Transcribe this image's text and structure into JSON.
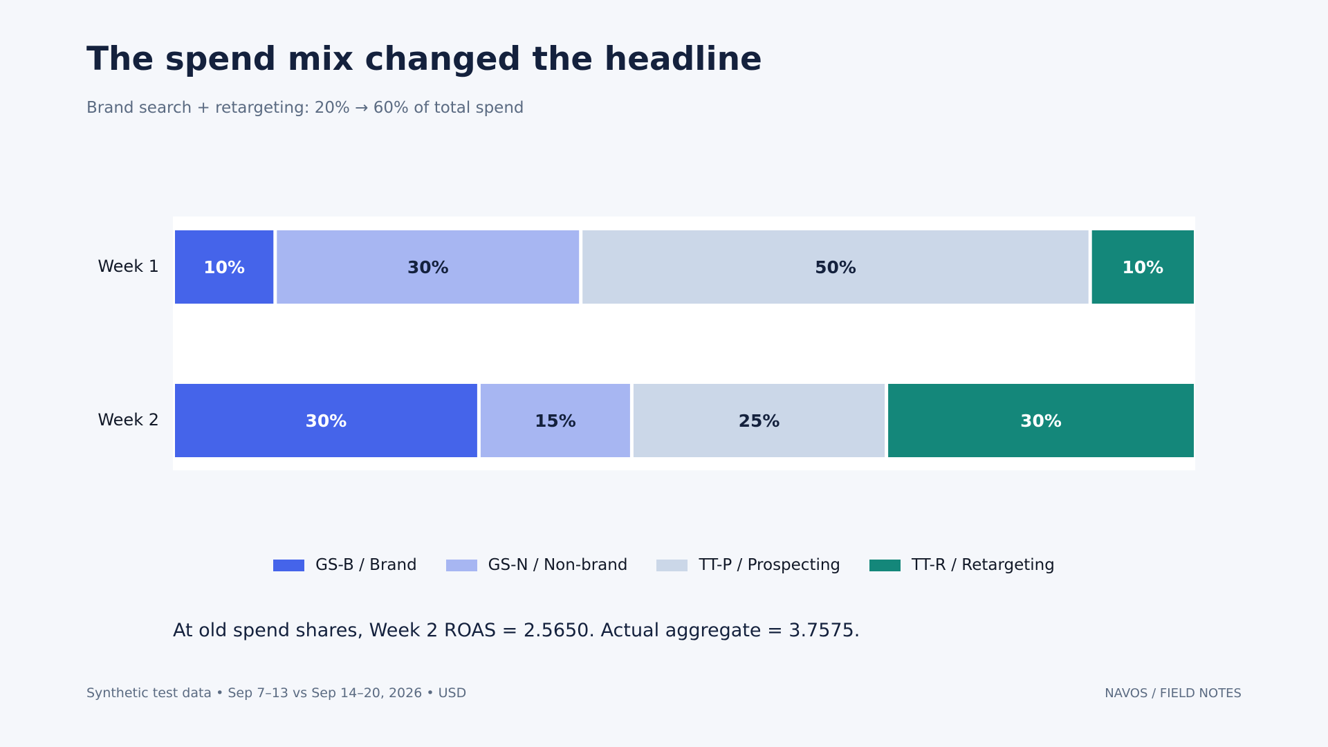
{
  "title": "The spend mix changed the headline",
  "subtitle": "Brand search + retargeting: 20% → 60% of total spend",
  "chart_data": {
    "type": "bar",
    "orientation": "horizontal",
    "stacked": true,
    "percent": true,
    "categories": [
      "Week 1",
      "Week 2"
    ],
    "series": [
      {
        "name": "GS-B / Brand",
        "values": [
          10,
          30
        ],
        "labels": [
          "10%",
          "30%"
        ],
        "color": "#4564ea",
        "label_color": "#ffffff"
      },
      {
        "name": "GS-N / Non-brand",
        "values": [
          30,
          15
        ],
        "labels": [
          "30%",
          "15%"
        ],
        "color": "#a7b6f2",
        "label_color": "#14213d"
      },
      {
        "name": "TT-P / Prospecting",
        "values": [
          50,
          25
        ],
        "labels": [
          "50%",
          "25%"
        ],
        "color": "#cbd7e8",
        "label_color": "#14213d"
      },
      {
        "name": "TT-R / Retargeting",
        "values": [
          10,
          30
        ],
        "labels": [
          "10%",
          "30%"
        ],
        "color": "#14877a",
        "label_color": "#ffffff"
      }
    ],
    "xlim": [
      0,
      100
    ],
    "legend_position": "bottom-center",
    "grid": false
  },
  "note": "At old spend shares, Week 2 ROAS = 2.5650. Actual aggregate = 3.7575.",
  "footer": {
    "source": "Synthetic test data • Sep 7–13 vs Sep 14–20, 2026 • USD",
    "brand": "NAVOS / FIELD NOTES"
  }
}
